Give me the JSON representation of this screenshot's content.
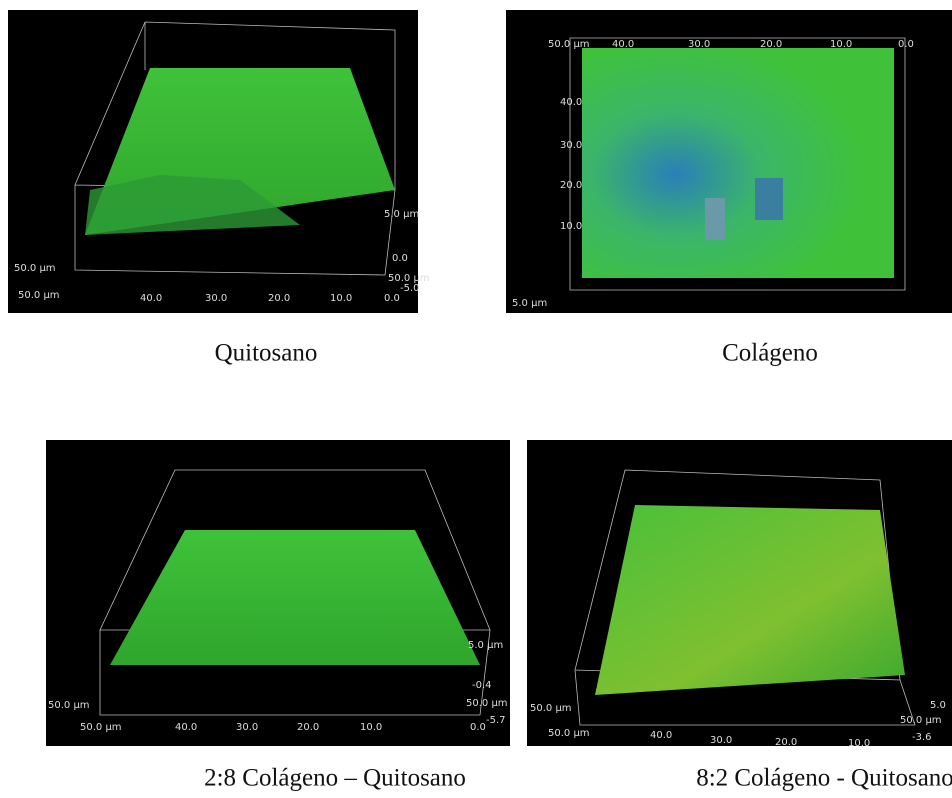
{
  "panels": [
    {
      "caption": "Quitosano",
      "labels": [
        "50.0 µm",
        "40.0",
        "30.0",
        "20.0",
        "10.0",
        "0.0",
        "-5.0",
        "50.0 µm",
        "0.0",
        "5.0 µm",
        "50.0 µm"
      ]
    },
    {
      "caption": "Colágeno",
      "labels": [
        "50.0 µm",
        "40.0",
        "30.0",
        "20.0",
        "10.0",
        "0.0",
        "40.0",
        "30.0",
        "20.0",
        "10.0",
        "5.0 µm"
      ]
    },
    {
      "caption": "2:8 Colágeno – Quitosano",
      "labels": [
        "5.0 µm",
        "-0.4",
        "50.0 µm",
        "0.0",
        "-5.7",
        "50.0 µm",
        "40.0",
        "30.0",
        "20.0",
        "10.0",
        "50.0 µm"
      ]
    },
    {
      "caption": "8:2 Colágeno - Quitosano",
      "labels": [
        "5.0",
        "50.0 µm",
        "-3.6",
        "50.0 µm",
        "40.0",
        "30.0",
        "20.0",
        "10.0",
        "50.0 µm"
      ]
    }
  ]
}
